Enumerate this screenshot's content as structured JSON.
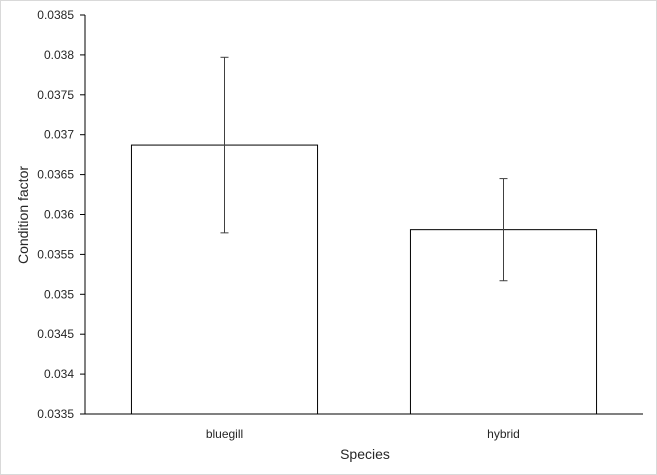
{
  "chart_data": {
    "type": "bar",
    "categories": [
      "bluegill",
      "hybrid"
    ],
    "series": [
      {
        "values": [
          0.03687,
          0.03581
        ],
        "error": [
          0.0011,
          0.00064
        ]
      }
    ],
    "title": "",
    "xlabel": "Species",
    "ylabel": "Condition factor",
    "ylim": [
      0.0335,
      0.0385
    ],
    "yticks": [
      "0.0335",
      "0.034",
      "0.0345",
      "0.035",
      "0.0355",
      "0.036",
      "0.0365",
      "0.037",
      "0.0375",
      "0.038",
      "0.0385"
    ],
    "grid": false,
    "legend": "none",
    "colors": {
      "bar_fill": "#ffffff",
      "bar_stroke": "#000000",
      "axis": "#000000",
      "error_bar": "#404040",
      "text": "#262626"
    }
  }
}
